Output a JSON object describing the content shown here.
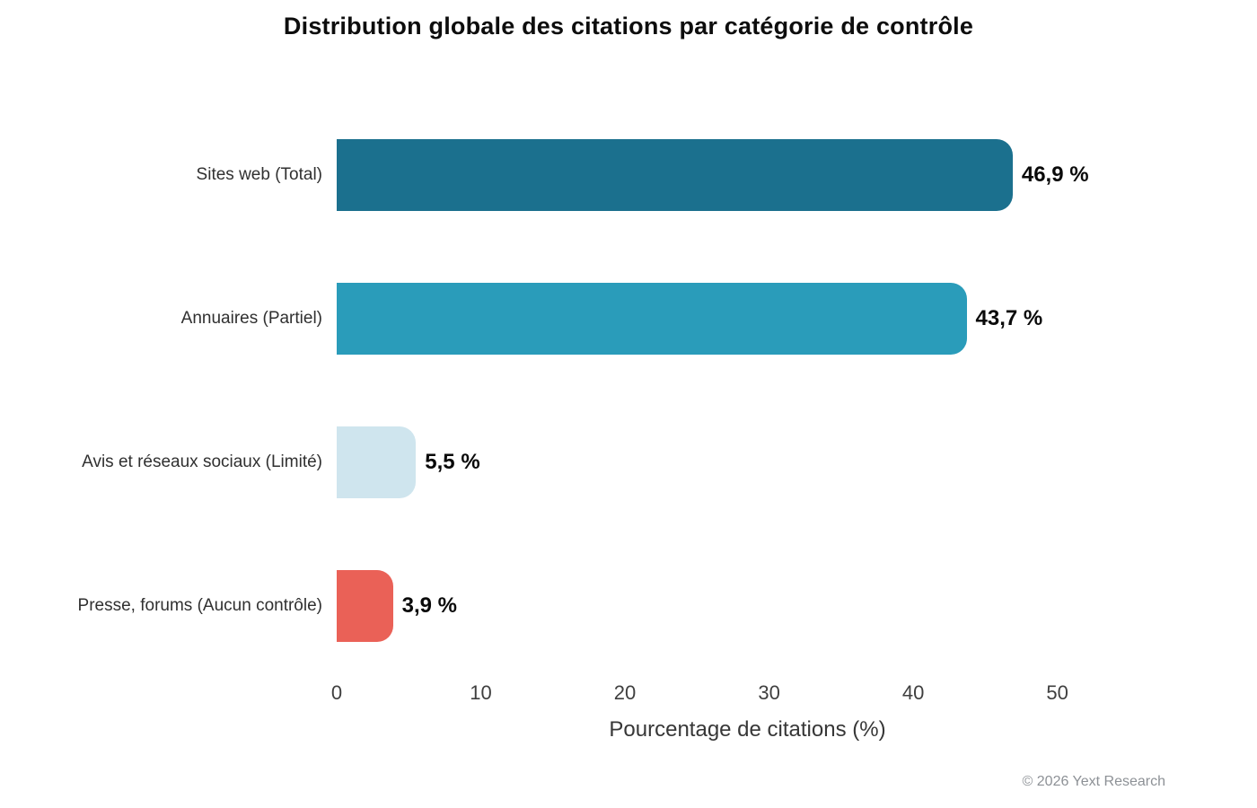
{
  "title": "Distribution globale des citations par catégorie de contrôle",
  "footer": "© 2026 Yext Research",
  "chart_data": {
    "type": "bar",
    "orientation": "horizontal",
    "title": "Distribution globale des citations par catégorie de contrôle",
    "categories": [
      "Sites web (Total)",
      "Annuaires (Partiel)",
      "Avis et réseaux sociaux (Limité)",
      "Presse, forums (Aucun contrôle)"
    ],
    "values": [
      46.9,
      43.7,
      5.5,
      3.9
    ],
    "value_labels": [
      "46,9 %",
      "43,7 %",
      "5,5 %",
      "3,9 %"
    ],
    "bar_colors": [
      "#1b708e",
      "#2a9cba",
      "#cfe5ee",
      "#ea6157"
    ],
    "xlabel": "Pourcentage de citations (%)",
    "xlim": [
      0,
      57
    ],
    "xticks": [
      0,
      10,
      20,
      30,
      40,
      50
    ],
    "grid": false,
    "legend": false
  }
}
